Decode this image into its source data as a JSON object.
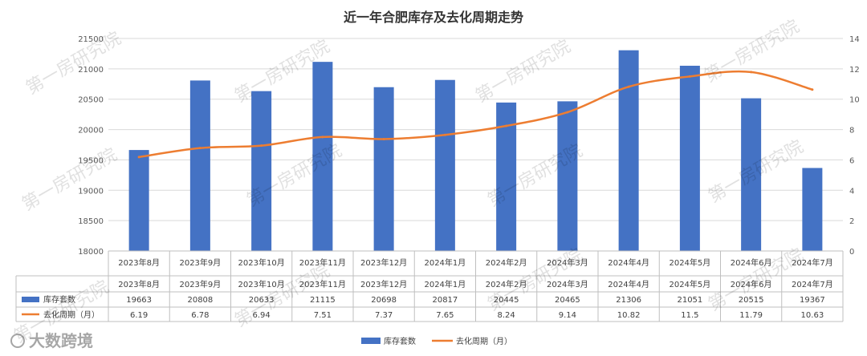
{
  "chart_data": {
    "type": "bar+line",
    "title": "近一年合肥库存及去化周期走势",
    "categories": [
      "2023年8月",
      "2023年9月",
      "2023年10月",
      "2023年11月",
      "2023年12月",
      "2024年1月",
      "2024年2月",
      "2024年3月",
      "2024年4月",
      "2024年5月",
      "2024年6月",
      "2024年7月"
    ],
    "series": [
      {
        "name": "库存套数",
        "type": "bar",
        "axis": "left",
        "color": "#4472C4",
        "values": [
          19663,
          20808,
          20633,
          21115,
          20698,
          20817,
          20445,
          20465,
          21306,
          21051,
          20515,
          19367
        ],
        "value_labels": [
          "19663",
          "20808",
          "20633",
          "21115",
          "20698",
          "20817",
          "20445",
          "20465",
          "21306",
          "21051",
          "20515",
          "19367"
        ]
      },
      {
        "name": "去化周期（月）",
        "type": "line",
        "axis": "right",
        "color": "#ED7D31",
        "values": [
          6.19,
          6.78,
          6.94,
          7.51,
          7.37,
          7.65,
          8.24,
          9.14,
          10.82,
          11.5,
          11.79,
          10.63
        ],
        "value_labels": [
          "6.19",
          "6.78",
          "6.94",
          "7.51",
          "7.37",
          "7.65",
          "8.24",
          "9.14",
          "10.82",
          "11.5",
          "11.79",
          "10.63"
        ]
      }
    ],
    "y_left": {
      "min": 18000,
      "max": 21500,
      "ticks": [
        "18000",
        "18500",
        "19000",
        "19500",
        "20000",
        "20500",
        "21000",
        "21500"
      ]
    },
    "y_right": {
      "min": 0,
      "max": 14,
      "ticks": [
        "0",
        "2",
        "4",
        "6",
        "8",
        "10",
        "12",
        "14"
      ]
    },
    "grid": true,
    "legend_position": "bottom",
    "legend_labels": [
      "库存套数",
      "去化周期（月）"
    ],
    "table_row_labels": [
      "库存套数",
      "去化周期（月）"
    ]
  },
  "watermark": {
    "text": "第一房研究院",
    "brand": "大数跨境"
  }
}
